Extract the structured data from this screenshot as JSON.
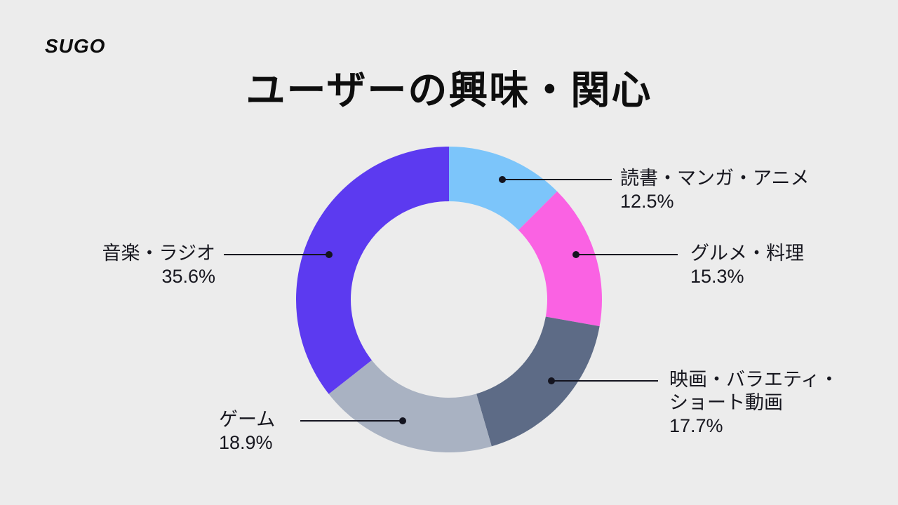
{
  "logo": "SUGO",
  "title": "ユーザーの興味・関心",
  "chart_data": {
    "type": "pie",
    "subtype": "donut",
    "title": "ユーザーの興味・関心",
    "categories": [
      "読書・マンガ・アニメ",
      "グルメ・料理",
      "映画・バラエティ・ショート動画",
      "ゲーム",
      "音楽・ラジオ"
    ],
    "values": [
      12.5,
      15.3,
      17.7,
      18.9,
      35.6
    ],
    "value_labels": [
      "12.5%",
      "15.3%",
      "17.7%",
      "18.9%",
      "35.6%"
    ],
    "colors": [
      "#7cc5fa",
      "#fa62e3",
      "#5d6b86",
      "#a9b2c2",
      "#5c3af0"
    ],
    "start_angle_deg": 0,
    "direction": "clockwise",
    "inner_radius_ratio": 0.64,
    "background_color": "#ececec",
    "label_style": "callout-lines",
    "legend_position": "none"
  }
}
